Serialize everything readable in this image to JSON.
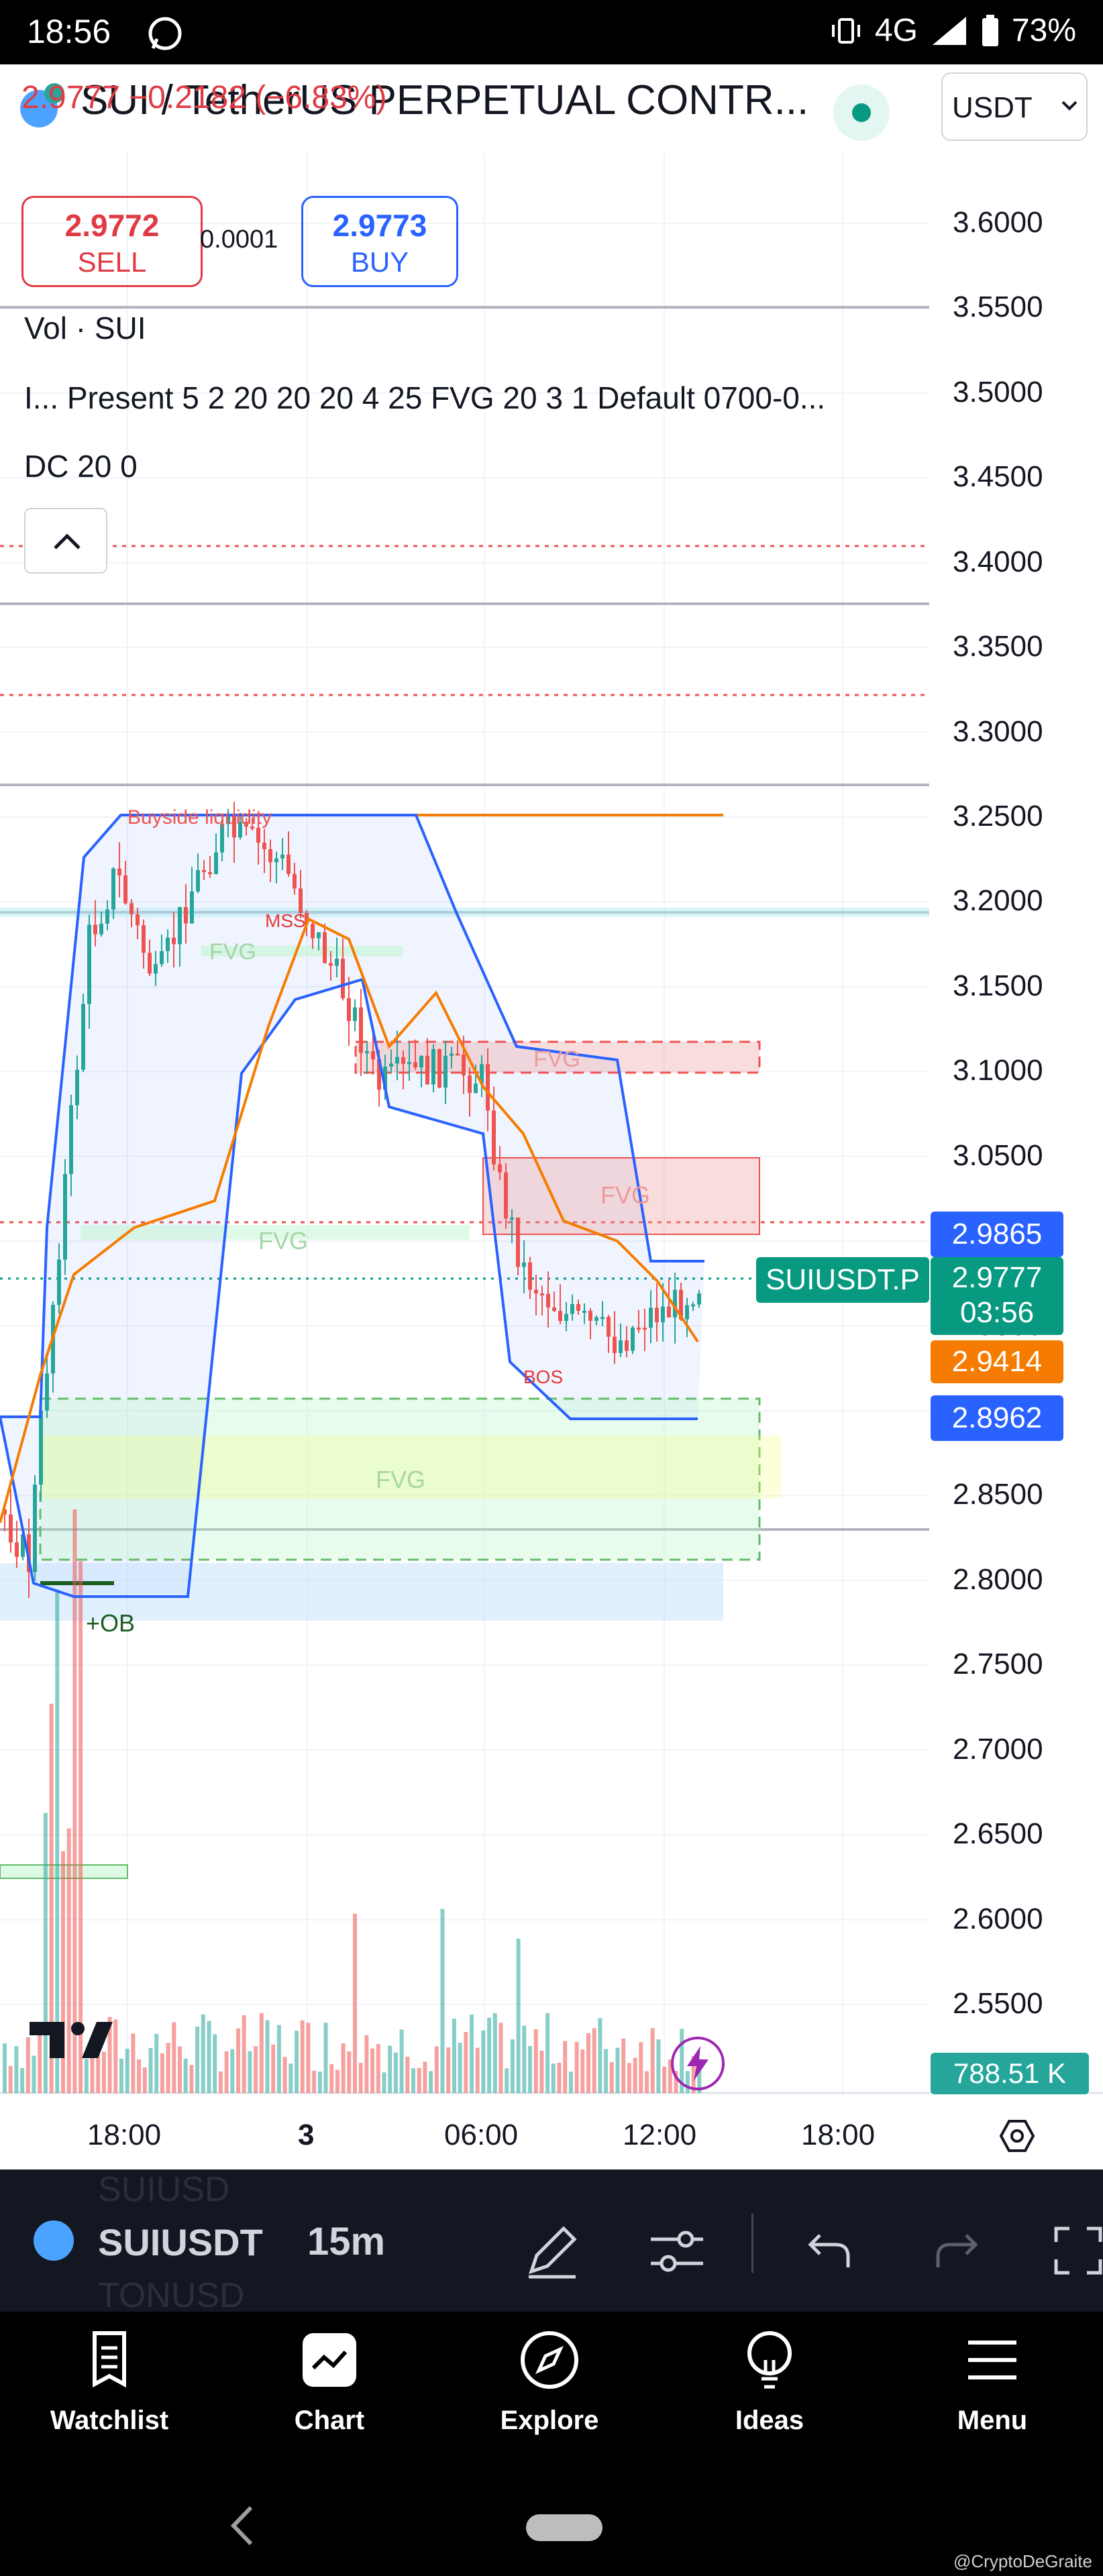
{
  "status_bar": {
    "time": "18:56",
    "network": "4G",
    "battery": "73%"
  },
  "header": {
    "title": "SUI / TetherUS PERPETUAL CONTR...",
    "price_change": "2.9777  −0.2182 (−6.83%)",
    "currency": "USDT",
    "currency_dropdown_icon": "chevron-down-icon"
  },
  "trade": {
    "sell_price": "2.9772",
    "sell_label": "SELL",
    "spread": "0.0001",
    "buy_price": "2.9773",
    "buy_label": "BUY"
  },
  "legend": {
    "vol": "Vol · SUI",
    "indicator": "I...  Present 5 2 20 20 20 4 25 FVG 20 3 1 Default 0700-0...",
    "dc": "DC 20 0"
  },
  "price_axis": [
    "3.6000",
    "3.5500",
    "3.5000",
    "3.4500",
    "3.4000",
    "3.3500",
    "3.3000",
    "3.2500",
    "3.2000",
    "3.1500",
    "3.1000",
    "3.0500",
    "3.0000",
    "2.9500",
    "2.9000",
    "2.8500",
    "2.8000",
    "2.7500",
    "2.7000",
    "2.6500",
    "2.6000",
    "2.5500"
  ],
  "price_tags": {
    "dc_upper": "2.9865",
    "symbol": "SUIUSDT.P",
    "last_price": "2.9777",
    "countdown": "03:56",
    "dc_mid": "2.9414",
    "dc_lower": "2.8962",
    "volume": "788.51 K"
  },
  "time_axis": [
    "18:00",
    "3",
    "06:00",
    "12:00",
    "18:00"
  ],
  "annotations": {
    "buyside": "Buyside liquidity",
    "mss": "MSS",
    "bos": "BOS",
    "ob": "+OB",
    "fvg": "FVG"
  },
  "colors": {
    "up": "#26a69a",
    "down": "#ef5350",
    "dc_band": "#2962ff",
    "dc_mid": "#f57c00",
    "tag_blue": "#2962ff",
    "tag_green": "#089981",
    "tag_orange": "#f57c00"
  },
  "toolbar": {
    "symbol": "SUIUSDT",
    "symbol_above": "SUIUSD",
    "symbol_below": "TONUSD",
    "interval": "15m"
  },
  "nav": [
    {
      "label": "Watchlist",
      "icon": "watchlist-icon"
    },
    {
      "label": "Chart",
      "icon": "chart-icon"
    },
    {
      "label": "Explore",
      "icon": "compass-icon"
    },
    {
      "label": "Ideas",
      "icon": "lightbulb-icon"
    },
    {
      "label": "Menu",
      "icon": "menu-icon"
    }
  ],
  "watermark": "@CryptoDeGraite"
}
